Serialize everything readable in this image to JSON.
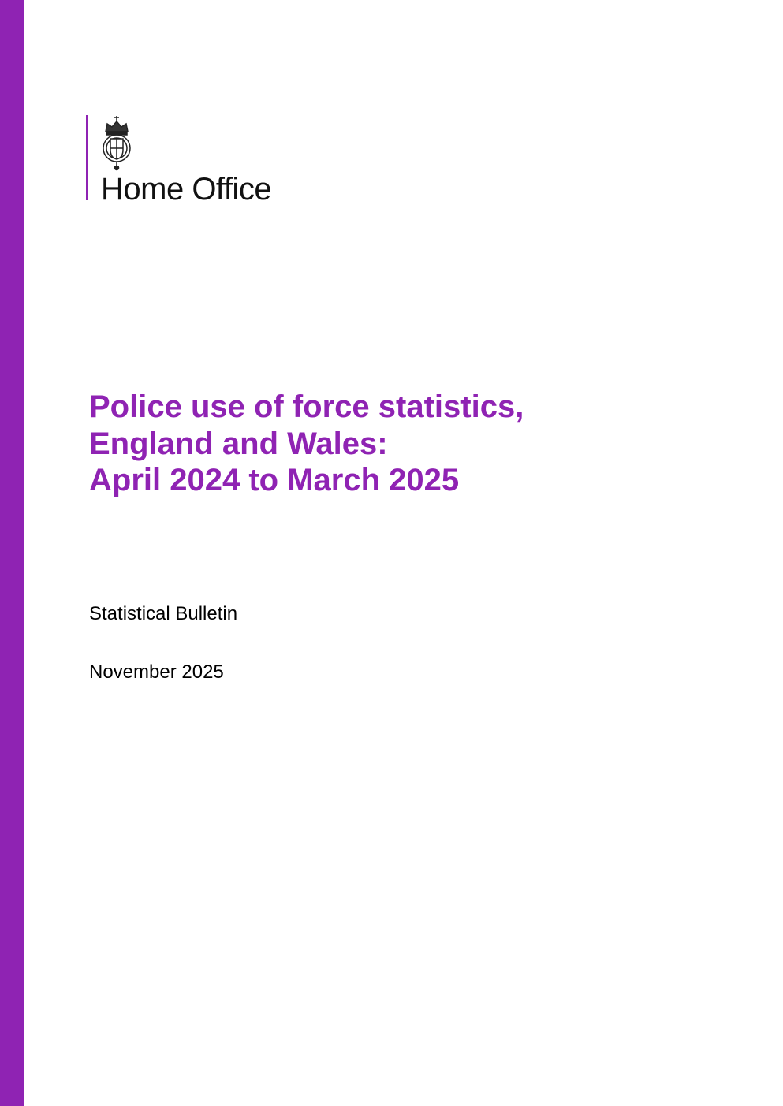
{
  "brand": {
    "accent_color": "#8F23B3",
    "logo_text": "Home Office",
    "crest_icon": "royal-coat-of-arms-icon"
  },
  "cover": {
    "title_lines": [
      "Police use of force statistics,",
      "England and Wales:",
      "April 2024 to March 2025"
    ],
    "subtitle": "Statistical Bulletin",
    "date": "November 2025"
  }
}
